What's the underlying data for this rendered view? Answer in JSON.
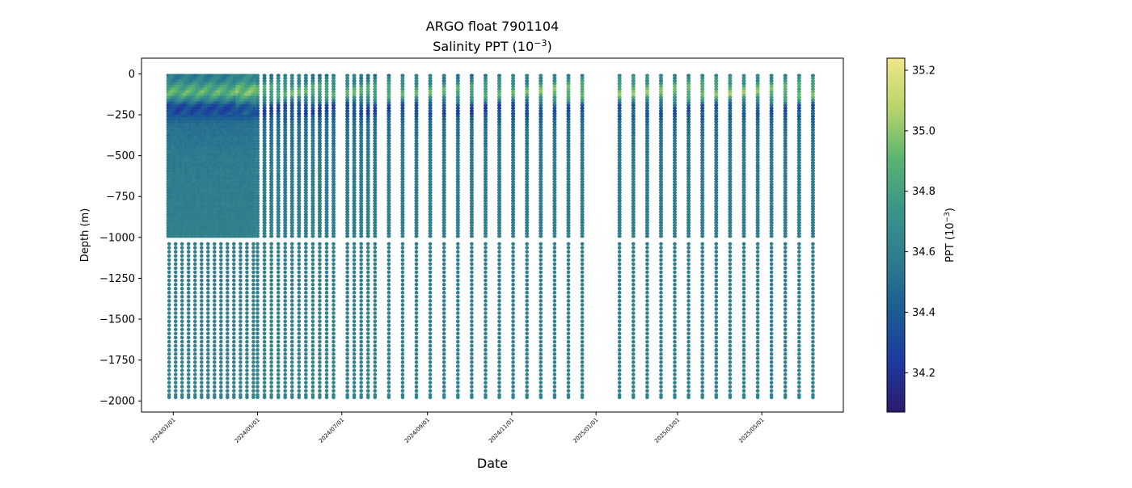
{
  "chart_data": {
    "type": "scatter",
    "title": "ARGO float 7901104",
    "subtitle": "Salinity PPT (10",
    "subtitle_exp": "−3",
    "subtitle_tail": ")",
    "xlabel": "Date",
    "ylabel": "Depth (m)",
    "colorbar_label": "PPT (10",
    "colorbar_label_exp": "−3",
    "colorbar_label_tail": ")",
    "colormap": "haline",
    "colormap_stops": [
      "#2a1a6e",
      "#1e3aa0",
      "#1a5c92",
      "#2e7c8e",
      "#3a948a",
      "#5ab370",
      "#b7d46c",
      "#f1e58a"
    ],
    "colorbar_range": [
      34.07,
      35.24
    ],
    "colorbar_ticks": [
      {
        "value": 34.2,
        "label": "34.2"
      },
      {
        "value": 34.4,
        "label": "34.4"
      },
      {
        "value": 34.6,
        "label": "34.6"
      },
      {
        "value": 34.8,
        "label": "34.8"
      },
      {
        "value": 35.0,
        "label": "35.0"
      },
      {
        "value": 35.2,
        "label": "35.2"
      }
    ],
    "xlim": [
      "2024-02-07",
      "2025-06-29"
    ],
    "ylim": [
      -2068,
      96
    ],
    "x_ticks": [
      {
        "date": "2024-03-01",
        "label": "2024/03/01"
      },
      {
        "date": "2024-05-01",
        "label": "2024/05/01"
      },
      {
        "date": "2024-07-01",
        "label": "2024/07/01"
      },
      {
        "date": "2024-09-01",
        "label": "2024/09/01"
      },
      {
        "date": "2024-11-01",
        "label": "2024/11/01"
      },
      {
        "date": "2025-01-01",
        "label": "2025/01/01"
      },
      {
        "date": "2025-03-01",
        "label": "2025/03/01"
      },
      {
        "date": "2025-05-01",
        "label": "2025/05/01"
      }
    ],
    "y_ticks": [
      {
        "value": 0,
        "label": "0"
      },
      {
        "value": -250,
        "label": "−250"
      },
      {
        "value": -500,
        "label": "−500"
      },
      {
        "value": -750,
        "label": "−750"
      },
      {
        "value": -1000,
        "label": "−1000"
      },
      {
        "value": -1250,
        "label": "−1250"
      },
      {
        "value": -1500,
        "label": "−1500"
      },
      {
        "value": -1750,
        "label": "−1750"
      },
      {
        "value": -2000,
        "label": "−2000"
      }
    ],
    "dense_period": {
      "start": "2024-02-27",
      "end": "2024-04-28"
    },
    "profile_dates": [
      "2024-05-01",
      "2024-05-06",
      "2024-05-11",
      "2024-05-16",
      "2024-05-21",
      "2024-05-26",
      "2024-05-31",
      "2024-06-05",
      "2024-06-10",
      "2024-06-15",
      "2024-06-20",
      "2024-06-25",
      "2024-07-05",
      "2024-07-10",
      "2024-07-15",
      "2024-07-20",
      "2024-07-25",
      "2024-08-04",
      "2024-08-14",
      "2024-08-24",
      "2024-09-03",
      "2024-09-13",
      "2024-09-23",
      "2024-10-03",
      "2024-10-13",
      "2024-10-23",
      "2024-11-02",
      "2024-11-12",
      "2024-11-22",
      "2024-12-02",
      "2024-12-12",
      "2024-12-22",
      "2025-01-18",
      "2025-01-28",
      "2025-02-07",
      "2025-02-17",
      "2025-02-27",
      "2025-03-09",
      "2025-03-19",
      "2025-03-29",
      "2025-04-08",
      "2025-04-18",
      "2025-04-28",
      "2025-05-08",
      "2025-05-18",
      "2025-05-28",
      "2025-06-07"
    ],
    "deep_sample_depths": [
      -1040,
      -1063,
      -1088,
      -1113,
      -1138,
      -1163,
      -1188,
      -1213,
      -1238,
      -1263,
      -1288,
      -1313,
      -1338,
      -1363,
      -1388,
      -1413,
      -1438,
      -1463,
      -1488,
      -1513,
      -1538,
      -1563,
      -1588,
      -1613,
      -1638,
      -1663,
      -1688,
      -1713,
      -1738,
      -1763,
      -1788,
      -1813,
      -1838,
      -1863,
      -1888,
      -1913,
      -1938,
      -1963,
      -1978
    ],
    "salinity_profile": [
      {
        "depth": 0,
        "salinity": 34.55
      },
      {
        "depth": -40,
        "salinity": 34.62
      },
      {
        "depth": -80,
        "salinity": 34.82
      },
      {
        "depth": -120,
        "salinity": 34.9
      },
      {
        "depth": -160,
        "salinity": 34.62
      },
      {
        "depth": -200,
        "salinity": 34.28
      },
      {
        "depth": -250,
        "salinity": 34.35
      },
      {
        "depth": -300,
        "salinity": 34.5
      },
      {
        "depth": -500,
        "salinity": 34.56
      },
      {
        "depth": -1000,
        "salinity": 34.6
      },
      {
        "depth": -2000,
        "salinity": 34.62
      }
    ]
  }
}
